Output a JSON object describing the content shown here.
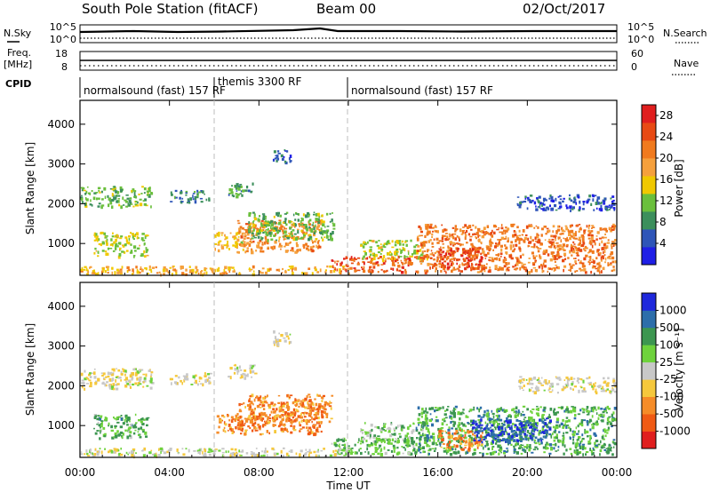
{
  "header": {
    "station": "South Pole Station (fitACF)",
    "beam": "Beam 00",
    "date": "02/Oct/2017"
  },
  "top_panels": {
    "nsky_label": "N.Sky",
    "nsearch_label": "N.Search",
    "nsky_ticks": [
      "10^5",
      "10^0"
    ],
    "freq_label_1": "Freq.",
    "freq_label_2": "[MHz]",
    "freq_ticks": [
      "18",
      "8"
    ],
    "nave_label": "Nave",
    "nave_ticks": [
      "60",
      "0"
    ],
    "cpid_label": "CPID",
    "cpid_segments": [
      {
        "start_h": 0,
        "end_h": 6,
        "label": "normalsound (fast) 157 RF"
      },
      {
        "start_h": 6,
        "end_h": 12,
        "label": "themis 3300 RF"
      },
      {
        "start_h": 12,
        "end_h": 24,
        "label": "normalsound (fast) 157 RF"
      }
    ]
  },
  "x_axis": {
    "label": "Time UT",
    "ticks": [
      "00:00",
      "04:00",
      "08:00",
      "12:00",
      "16:00",
      "20:00",
      "00:00"
    ],
    "range_hours": [
      0,
      24
    ]
  },
  "colors": {
    "power": [
      "#1f1fe6",
      "#2e55b8",
      "#3c8f5c",
      "#6abf3c",
      "#f0c800",
      "#f5a03c",
      "#f07a1e",
      "#e84a14",
      "#e01e1e"
    ],
    "velocity": [
      "#e01e1e",
      "#f05a14",
      "#f58c28",
      "#f5c83c",
      "#c8c8c8",
      "#6ed23c",
      "#3c9650",
      "#2d6eaa",
      "#1e28dc"
    ]
  },
  "chart_data": [
    {
      "type": "heatmap",
      "panel": "power",
      "ylabel": "Slant Range [km]",
      "yticks": [
        "1000",
        "2000",
        "3000",
        "4000"
      ],
      "ylim": [
        200,
        4600
      ],
      "colorbar_label": "Power [dB]",
      "colorbar_ticks": [
        "4",
        "8",
        "12",
        "16",
        "20",
        "24",
        "28"
      ],
      "colorbar_range": [
        0,
        30
      ],
      "regions": [
        {
          "t0": 0.0,
          "t1": 3.2,
          "r0": 1950,
          "r1": 2450,
          "level": 0.35
        },
        {
          "t0": 0.6,
          "t1": 3.0,
          "r0": 700,
          "r1": 1300,
          "level": 0.45
        },
        {
          "t0": 4.0,
          "t1": 5.8,
          "r0": 2050,
          "r1": 2350,
          "level": 0.2
        },
        {
          "t0": 6.0,
          "t1": 7.4,
          "r0": 850,
          "r1": 1300,
          "level": 0.55
        },
        {
          "t0": 7.0,
          "t1": 10.8,
          "r0": 800,
          "r1": 1600,
          "level": 0.7
        },
        {
          "t0": 7.5,
          "t1": 11.3,
          "r0": 1100,
          "r1": 1800,
          "level": 0.35
        },
        {
          "t0": 6.6,
          "t1": 7.8,
          "r0": 2200,
          "r1": 2550,
          "level": 0.3
        },
        {
          "t0": 8.6,
          "t1": 9.4,
          "r0": 3050,
          "r1": 3400,
          "level": 0.15
        },
        {
          "t0": 11.2,
          "t1": 15.0,
          "r0": 300,
          "r1": 700,
          "level": 0.85
        },
        {
          "t0": 12.5,
          "t1": 15.5,
          "r0": 600,
          "r1": 1100,
          "level": 0.45
        },
        {
          "t0": 15.0,
          "t1": 23.9,
          "r0": 300,
          "r1": 1500,
          "level": 0.75
        },
        {
          "t0": 16.0,
          "t1": 18.0,
          "r0": 400,
          "r1": 900,
          "level": 0.9
        },
        {
          "t0": 19.5,
          "t1": 23.9,
          "r0": 1850,
          "r1": 2250,
          "level": 0.1
        },
        {
          "t0": 0.0,
          "t1": 12.0,
          "r0": 250,
          "r1": 450,
          "level": 0.6
        }
      ]
    },
    {
      "type": "heatmap",
      "panel": "velocity",
      "ylabel": "Slant Range [km]",
      "yticks": [
        "1000",
        "2000",
        "3000",
        "4000"
      ],
      "ylim": [
        200,
        4600
      ],
      "colorbar_label": "Velocity [m s⁻¹]",
      "colorbar_ticks": [
        "1000",
        "500",
        "100",
        "25",
        "-25",
        "-100",
        "-500",
        "-1000"
      ],
      "regions": [
        {
          "t0": 0.0,
          "t1": 3.2,
          "r0": 1950,
          "r1": 2450,
          "level": 0.45
        },
        {
          "t0": 0.6,
          "t1": 3.0,
          "r0": 700,
          "r1": 1300,
          "level": 0.68
        },
        {
          "t0": 4.0,
          "t1": 5.8,
          "r0": 2050,
          "r1": 2350,
          "level": 0.45
        },
        {
          "t0": 6.0,
          "t1": 7.4,
          "r0": 850,
          "r1": 1300,
          "level": 0.25
        },
        {
          "t0": 7.0,
          "t1": 10.8,
          "r0": 800,
          "r1": 1600,
          "level": 0.22
        },
        {
          "t0": 7.5,
          "t1": 11.3,
          "r0": 1100,
          "r1": 1800,
          "level": 0.25
        },
        {
          "t0": 6.6,
          "t1": 7.8,
          "r0": 2200,
          "r1": 2550,
          "level": 0.45
        },
        {
          "t0": 8.6,
          "t1": 9.4,
          "r0": 3050,
          "r1": 3400,
          "level": 0.45
        },
        {
          "t0": 11.2,
          "t1": 15.0,
          "r0": 300,
          "r1": 700,
          "level": 0.68
        },
        {
          "t0": 12.5,
          "t1": 15.5,
          "r0": 600,
          "r1": 1100,
          "level": 0.62
        },
        {
          "t0": 15.0,
          "t1": 23.9,
          "r0": 300,
          "r1": 1500,
          "level": 0.72
        },
        {
          "t0": 16.0,
          "t1": 18.0,
          "r0": 400,
          "r1": 900,
          "level": 0.22
        },
        {
          "t0": 17.5,
          "t1": 21.0,
          "r0": 600,
          "r1": 1200,
          "level": 0.95
        },
        {
          "t0": 19.5,
          "t1": 23.9,
          "r0": 1850,
          "r1": 2250,
          "level": 0.45
        },
        {
          "t0": 0.0,
          "t1": 12.0,
          "r0": 250,
          "r1": 450,
          "level": 0.5
        }
      ]
    }
  ]
}
